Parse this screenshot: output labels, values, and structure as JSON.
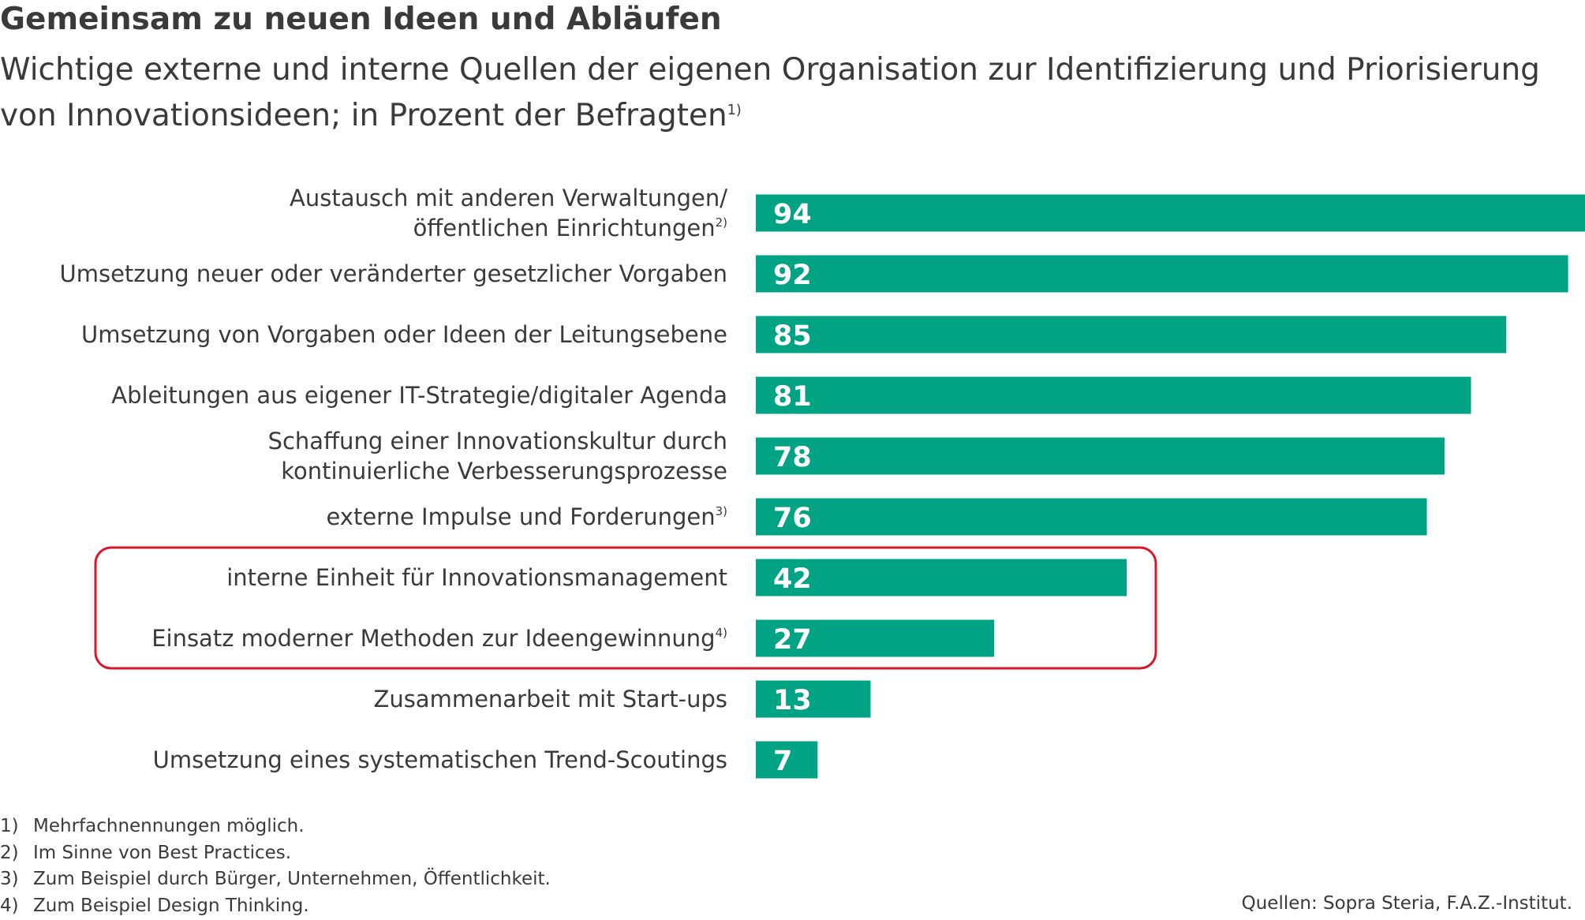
{
  "title": "Gemeinsam zu neuen Ideen und Abläufen",
  "subtitle": "Wichtige externe und interne Quellen der eigenen Organisation zur Identifizierung und Priorisierung von Innovationsideen; in Prozent der Befragten",
  "subtitle_note": "1)",
  "chart_data": {
    "type": "bar",
    "orientation": "horizontal",
    "categories": [
      [
        "Austausch mit anderen Verwaltungen/",
        "öffentlichen Einrichtungen"
      ],
      [
        "Umsetzung neuer oder veränderter gesetzlicher Vorgaben"
      ],
      [
        "Umsetzung von Vorgaben oder Ideen der Leitungsebene"
      ],
      [
        "Ableitungen aus eigener IT-Strategie/digitaler Agenda"
      ],
      [
        "Schaffung einer Innovationskultur durch",
        "kontinuierliche Verbesserungsprozesse"
      ],
      [
        "externe Impulse und Forderungen"
      ],
      [
        "interne Einheit für Innovationsmanagement"
      ],
      [
        "Einsatz moderner Methoden zur Ideengewinnung"
      ],
      [
        "Zusammenarbeit mit Start-ups"
      ],
      [
        "Umsetzung eines systematischen Trend-Scoutings"
      ]
    ],
    "category_notes": [
      "2)",
      "",
      "",
      "",
      "",
      "3)",
      "",
      "4)",
      "",
      ""
    ],
    "values": [
      94,
      92,
      85,
      81,
      78,
      76,
      42,
      27,
      13,
      7
    ],
    "xlim": [
      0,
      94
    ],
    "unit": "%",
    "highlighted_categories": [
      6,
      7
    ],
    "bar_color": "#00a383",
    "highlight_color": "#d7182a"
  },
  "footnotes": [
    {
      "num": "1)",
      "text": "Mehrfachnennungen möglich."
    },
    {
      "num": "2)",
      "text": "Im Sinne von Best Practices."
    },
    {
      "num": "3)",
      "text": "Zum Beispiel durch Bürger, Unternehmen, Öffentlichkeit."
    },
    {
      "num": "4)",
      "text": "Zum Beispiel Design Thinking."
    }
  ],
  "source": "Quellen: Sopra Steria, F.A.Z.-Institut."
}
